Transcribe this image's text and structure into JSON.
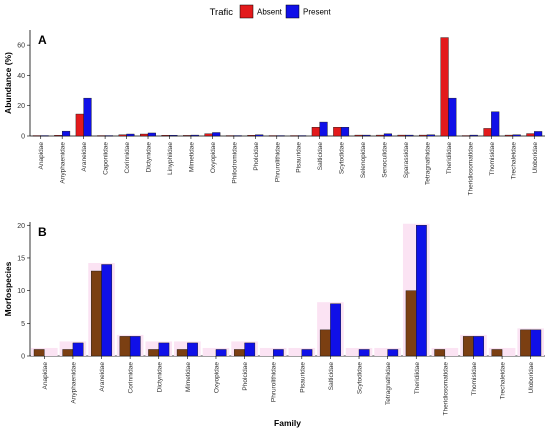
{
  "legend": {
    "title": "Trafic",
    "items": [
      {
        "label": "Absent",
        "color": "#e31a1c"
      },
      {
        "label": "Present",
        "color": "#1010e8"
      }
    ]
  },
  "chart_data": [
    {
      "type": "bar",
      "panel_label": "A",
      "ylabel": "Abundance (%)",
      "xlabel": "",
      "ylim": [
        0,
        70
      ],
      "yticks": [
        0,
        20,
        40,
        60
      ],
      "grid": false,
      "legend_position": "top",
      "categories": [
        "Anapidae",
        "Anyphaenidae",
        "Araneidae",
        "Caponiidae",
        "Corinnidae",
        "Dictynidae",
        "Linyphiidae",
        "Mimetidae",
        "Oxyopidae",
        "Philodromidae",
        "Pholcidae",
        "Phrurolithidae",
        "Pisauridae",
        "Salticidae",
        "Scytodidae",
        "Selenopidae",
        "Senoculidae",
        "Sparassidae",
        "Tetragnathidae",
        "Theridiidae",
        "Theridiosomatidae",
        "Thomisidae",
        "Trechaleidae",
        "Uloboridae"
      ],
      "series": [
        {
          "name": "Absent",
          "color": "#e31a1c",
          "values": [
            0.3,
            0.5,
            14.5,
            0.3,
            0.8,
            1.3,
            0.5,
            0.4,
            1.5,
            0.3,
            0.5,
            0.3,
            0.3,
            5.8,
            5.8,
            0.6,
            0.6,
            0.6,
            0.6,
            65,
            0.3,
            5.0,
            0.6,
            1.6
          ]
        },
        {
          "name": "Present",
          "color": "#1010e8",
          "values": [
            0.3,
            3.2,
            25,
            0.3,
            1.3,
            2.0,
            0.5,
            0.6,
            2.3,
            0.3,
            0.8,
            0.3,
            0.3,
            9.2,
            5.8,
            0.6,
            1.5,
            0.6,
            0.8,
            25,
            0.6,
            16,
            0.8,
            3.0
          ]
        }
      ]
    },
    {
      "type": "bar",
      "panel_label": "B",
      "ylabel": "Morfospecies",
      "xlabel": "Family",
      "ylim": [
        0,
        20.5
      ],
      "yticks": [
        0,
        5,
        10,
        15,
        20
      ],
      "grid": false,
      "categories": [
        "Anapidae",
        "Anyphaenidae",
        "Araneidae",
        "Corinnidae",
        "Dictynidae",
        "Mimetidae",
        "Oxyopidae",
        "Pholcidae",
        "Phrurolithidae",
        "Pisauridae",
        "Salticidae",
        "Scytodidae",
        "Tetragnathidae",
        "Theridiidae",
        "Theridiosomatidae",
        "Thomisidae",
        "Trechaleidae",
        "Uloboridae"
      ],
      "series": [
        {
          "name": "Absent",
          "color": "#7b3f12",
          "values": [
            1,
            1,
            13,
            3,
            1,
            1,
            0,
            1,
            0,
            0,
            4,
            0,
            0,
            10,
            1,
            3,
            1,
            4
          ]
        },
        {
          "name": "Present",
          "color": "#1010e8",
          "values": [
            0,
            2,
            14,
            3,
            2,
            2,
            1,
            2,
            1,
            1,
            8,
            1,
            1,
            20,
            0,
            3,
            0,
            4
          ]
        }
      ]
    }
  ]
}
